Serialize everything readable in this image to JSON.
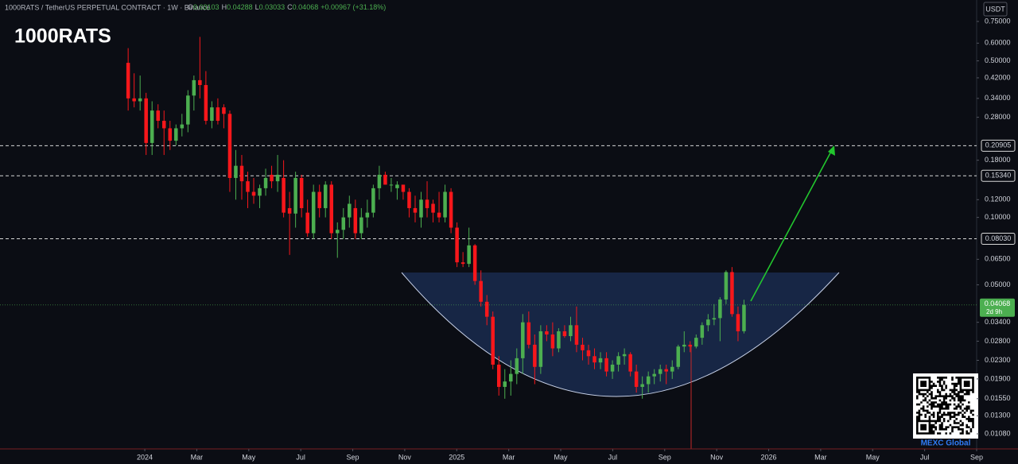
{
  "chart_data": {
    "type": "candlestick",
    "title": "1000RATS",
    "symbol": "1000RATS / TetherUS PERPETUAL CONTRACT · 1W · Binance",
    "ohlc_prefixes": [
      "O",
      "H",
      "L",
      "C"
    ],
    "change_label": "+0.00967 (+31.18%)",
    "currency": "USDT",
    "countdown": "2d 9h",
    "watermark": "MEXC Global",
    "up_color": "#4caf50",
    "down_color": "#f7171b",
    "x": [
      -0.64,
      -0.41,
      -0.18,
      0.05,
      0.28,
      0.51,
      0.74,
      0.97,
      1.2,
      1.43,
      1.66,
      1.89,
      2.12,
      2.35,
      2.58,
      2.81,
      3.04,
      3.27,
      3.5,
      3.73,
      3.96,
      4.19,
      4.42,
      4.65,
      4.88,
      5.11,
      5.34,
      5.57,
      5.8,
      6.03,
      6.26,
      6.49,
      6.72,
      6.95,
      7.18,
      7.41,
      7.64,
      7.87,
      8.1,
      8.33,
      8.56,
      8.79,
      9.02,
      9.25,
      9.48,
      9.71,
      9.94,
      10.17,
      10.4,
      10.63,
      10.86,
      11.09,
      11.32,
      11.55,
      11.78,
      12.01,
      12.24,
      12.47,
      12.7,
      12.93,
      13.16,
      13.39,
      13.62,
      13.85,
      14.08,
      14.31,
      14.54,
      14.77,
      15,
      15.23,
      15.46,
      15.69,
      15.92,
      16.15,
      16.38,
      16.61,
      16.84,
      17.07,
      17.3,
      17.53,
      17.76,
      17.99,
      18.22,
      18.45,
      18.68,
      18.91,
      19.14,
      19.37,
      19.6,
      19.83,
      20.06,
      20.29,
      20.52,
      20.75,
      20.98,
      21.21,
      21.44,
      21.67,
      21.9,
      22.13,
      22.36,
      22.59,
      22.82,
      23.05
    ],
    "open": [
      0.49,
      0.34,
      0.33,
      0.34,
      0.215,
      0.3,
      0.27,
      0.25,
      0.22,
      0.25,
      0.26,
      0.35,
      0.41,
      0.39,
      0.27,
      0.31,
      0.31,
      0.29,
      0.15,
      0.17,
      0.145,
      0.13,
      0.125,
      0.135,
      0.155,
      0.145,
      0.15,
      0.11,
      0.104,
      0.15,
      0.105,
      0.085,
      0.13,
      0.11,
      0.14,
      0.085,
      0.088,
      0.1,
      0.11,
      0.085,
      0.1,
      0.105,
      0.135,
      0.155,
      0.14,
      0.135,
      0.14,
      0.13,
      0.11,
      0.1,
      0.12,
      0.115,
      0.105,
      0.1,
      0.13,
      0.09,
      0.063,
      0.062,
      0.075,
      0.052,
      0.042,
      0.036,
      0.022,
      0.0175,
      0.0185,
      0.02,
      0.0235,
      0.034,
      0.027,
      0.0215,
      0.031,
      0.03,
      0.026,
      0.031,
      0.0295,
      0.033,
      0.027,
      0.0255,
      0.024,
      0.0225,
      0.0235,
      0.0205,
      0.022,
      0.024,
      0.0245,
      0.0205,
      0.0175,
      0.018,
      0.0195,
      0.02,
      0.021,
      0.0205,
      0.0215,
      0.0265,
      0.027,
      0.0265,
      0.029,
      0.033,
      0.035,
      0.0355,
      0.043,
      0.057,
      0.037,
      0.03103
    ],
    "high": [
      0.57,
      0.44,
      0.43,
      0.36,
      0.33,
      0.32,
      0.3,
      0.27,
      0.26,
      0.29,
      0.37,
      0.43,
      0.64,
      0.45,
      0.33,
      0.34,
      0.32,
      0.3,
      0.2,
      0.19,
      0.16,
      0.15,
      0.14,
      0.165,
      0.17,
      0.19,
      0.18,
      0.13,
      0.16,
      0.155,
      0.12,
      0.14,
      0.14,
      0.145,
      0.145,
      0.095,
      0.11,
      0.125,
      0.12,
      0.11,
      0.12,
      0.14,
      0.17,
      0.16,
      0.15,
      0.145,
      0.14,
      0.135,
      0.125,
      0.13,
      0.145,
      0.12,
      0.13,
      0.14,
      0.135,
      0.095,
      0.07,
      0.09,
      0.076,
      0.058,
      0.045,
      0.038,
      0.024,
      0.021,
      0.023,
      0.026,
      0.037,
      0.038,
      0.03,
      0.033,
      0.033,
      0.034,
      0.032,
      0.033,
      0.036,
      0.04,
      0.029,
      0.027,
      0.026,
      0.025,
      0.025,
      0.023,
      0.025,
      0.026,
      0.025,
      0.022,
      0.0195,
      0.0205,
      0.021,
      0.022,
      0.022,
      0.023,
      0.027,
      0.031,
      0.028,
      0.03,
      0.034,
      0.037,
      0.041,
      0.044,
      0.058,
      0.06,
      0.04,
      0.04288
    ],
    "low": [
      0.3,
      0.31,
      0.3,
      0.19,
      0.19,
      0.25,
      0.19,
      0.2,
      0.21,
      0.23,
      0.24,
      0.3,
      0.34,
      0.26,
      0.25,
      0.26,
      0.25,
      0.13,
      0.12,
      0.12,
      0.11,
      0.115,
      0.11,
      0.125,
      0.135,
      0.13,
      0.1,
      0.068,
      0.09,
      0.1,
      0.082,
      0.08,
      0.1,
      0.1,
      0.08,
      0.066,
      0.08,
      0.09,
      0.08,
      0.08,
      0.09,
      0.1,
      0.12,
      0.14,
      0.13,
      0.12,
      0.12,
      0.1,
      0.095,
      0.09,
      0.1,
      0.095,
      0.095,
      0.095,
      0.085,
      0.06,
      0.06,
      0.06,
      0.05,
      0.04,
      0.033,
      0.021,
      0.016,
      0.0155,
      0.016,
      0.018,
      0.02,
      0.026,
      0.018,
      0.02,
      0.028,
      0.024,
      0.025,
      0.029,
      0.028,
      0.025,
      0.023,
      0.022,
      0.021,
      0.021,
      0.0195,
      0.019,
      0.0205,
      0.022,
      0.0195,
      0.0165,
      0.0155,
      0.0165,
      0.018,
      0.0185,
      0.018,
      0.019,
      0.021,
      0.025,
      0.025,
      0.026,
      0.027,
      0.031,
      0.033,
      0.028,
      0.041,
      0.036,
      0.028,
      0.03033
    ],
    "close": [
      0.34,
      0.33,
      0.34,
      0.215,
      0.3,
      0.27,
      0.25,
      0.22,
      0.25,
      0.26,
      0.35,
      0.41,
      0.39,
      0.27,
      0.31,
      0.27,
      0.29,
      0.15,
      0.17,
      0.145,
      0.13,
      0.125,
      0.135,
      0.15,
      0.145,
      0.155,
      0.105,
      0.104,
      0.15,
      0.11,
      0.085,
      0.13,
      0.11,
      0.14,
      0.085,
      0.088,
      0.1,
      0.115,
      0.085,
      0.1,
      0.105,
      0.135,
      0.155,
      0.14,
      0.14,
      0.14,
      0.13,
      0.11,
      0.105,
      0.12,
      0.11,
      0.105,
      0.1,
      0.13,
      0.09,
      0.063,
      0.062,
      0.075,
      0.052,
      0.042,
      0.036,
      0.022,
      0.0175,
      0.0185,
      0.02,
      0.0235,
      0.034,
      0.027,
      0.0215,
      0.031,
      0.03,
      0.026,
      0.031,
      0.0295,
      0.033,
      0.027,
      0.0255,
      0.024,
      0.0225,
      0.0235,
      0.0205,
      0.022,
      0.024,
      0.0245,
      0.0205,
      0.0175,
      0.018,
      0.0195,
      0.02,
      0.021,
      0.0205,
      0.0215,
      0.0265,
      0.027,
      0.0265,
      0.029,
      0.033,
      0.035,
      0.0355,
      0.043,
      0.057,
      0.037,
      0.031,
      0.04068
    ],
    "xlim": [
      -5.57,
      32
    ],
    "xticks": [
      {
        "value": 0,
        "label": "2024"
      },
      {
        "value": 2,
        "label": "Mar"
      },
      {
        "value": 4,
        "label": "May"
      },
      {
        "value": 6,
        "label": "Jul"
      },
      {
        "value": 8,
        "label": "Sep"
      },
      {
        "value": 10,
        "label": "Nov"
      },
      {
        "value": 12,
        "label": "2025"
      },
      {
        "value": 14,
        "label": "Mar"
      },
      {
        "value": 16,
        "label": "May"
      },
      {
        "value": 18,
        "label": "Jul"
      },
      {
        "value": 20,
        "label": "Sep"
      },
      {
        "value": 22,
        "label": "Nov"
      },
      {
        "value": 24,
        "label": "2026"
      },
      {
        "value": 26,
        "label": "Mar"
      },
      {
        "value": 28,
        "label": "May"
      },
      {
        "value": 30,
        "label": "Jul"
      },
      {
        "value": 32,
        "label": "Sep"
      }
    ],
    "ylim": [
      0.00925,
      0.935
    ],
    "log_scale": true,
    "yticks": [
      {
        "value": 0.75,
        "label": "0.75000"
      },
      {
        "value": 0.6,
        "label": "0.60000"
      },
      {
        "value": 0.5,
        "label": "0.50000"
      },
      {
        "value": 0.42,
        "label": "0.42000"
      },
      {
        "value": 0.34,
        "label": "0.34000"
      },
      {
        "value": 0.28,
        "label": "0.28000"
      },
      {
        "value": 0.18,
        "label": "0.18000"
      },
      {
        "value": 0.12,
        "label": "0.12000"
      },
      {
        "value": 0.1,
        "label": "0.10000"
      },
      {
        "value": 0.065,
        "label": "0.06500"
      },
      {
        "value": 0.05,
        "label": "0.05000"
      },
      {
        "value": 0.034,
        "label": "0.03400"
      },
      {
        "value": 0.028,
        "label": "0.02800"
      },
      {
        "value": 0.023,
        "label": "0.02300"
      },
      {
        "value": 0.019,
        "label": "0.01900"
      },
      {
        "value": 0.0155,
        "label": "0.01550"
      },
      {
        "value": 0.013,
        "label": "0.01300"
      },
      {
        "value": 0.0108,
        "label": "0.01080"
      }
    ],
    "levels": [
      0.20905,
      {
        "value": 0.1534,
        "label": "0.15340"
      },
      {
        "value": 0.0803,
        "label": "0.08030"
      }
    ],
    "grid": false
  }
}
